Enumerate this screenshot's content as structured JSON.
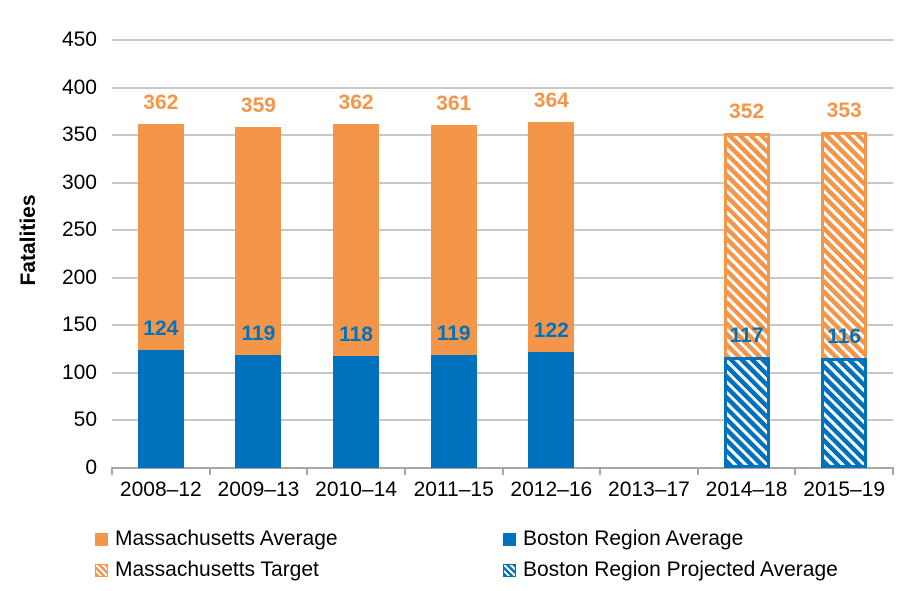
{
  "chart_data": {
    "type": "bar",
    "stacked": true,
    "title": "",
    "xlabel": "",
    "ylabel": "Fatalities",
    "ylim": [
      0,
      450
    ],
    "yticks": [
      0,
      50,
      100,
      150,
      200,
      250,
      300,
      350,
      400,
      450
    ],
    "grid": true,
    "categories": [
      "2008–12",
      "2009–13",
      "2010–14",
      "2011–15",
      "2012–16",
      "2013–17",
      "2014–18",
      "2015–19"
    ],
    "series": [
      {
        "name": "Massachusetts Average",
        "color": "#F4964A",
        "pattern": "solid",
        "values": [
          362,
          359,
          362,
          361,
          364,
          null,
          null,
          null
        ]
      },
      {
        "name": "Boston Region Average",
        "color": "#0071BC",
        "pattern": "solid",
        "values": [
          124,
          119,
          118,
          119,
          122,
          null,
          null,
          null
        ]
      },
      {
        "name": "Massachusetts Target",
        "color": "#F4964A",
        "pattern": "hatched",
        "values": [
          null,
          null,
          null,
          null,
          null,
          null,
          352,
          353
        ]
      },
      {
        "name": "Boston Region Projected Average",
        "color": "#0071BC",
        "pattern": "hatched",
        "values": [
          null,
          null,
          null,
          null,
          null,
          null,
          117,
          116
        ]
      }
    ],
    "legend": {
      "position": "bottom",
      "items": [
        {
          "label": "Massachusetts Average",
          "color": "#F4964A",
          "pattern": "solid"
        },
        {
          "label": "Boston Region Average",
          "color": "#0071BC",
          "pattern": "solid"
        },
        {
          "label": "Massachusetts Target",
          "color": "#F4964A",
          "pattern": "hatched"
        },
        {
          "label": "Boston Region Projected Average",
          "color": "#0071BC",
          "pattern": "hatched"
        }
      ]
    }
  },
  "colors": {
    "orange": "#F4964A",
    "blue": "#0071BC",
    "gridline": "#C8C8C8",
    "axis": "#A6A6A6",
    "text": "#000000",
    "background": "#FFFFFF"
  }
}
